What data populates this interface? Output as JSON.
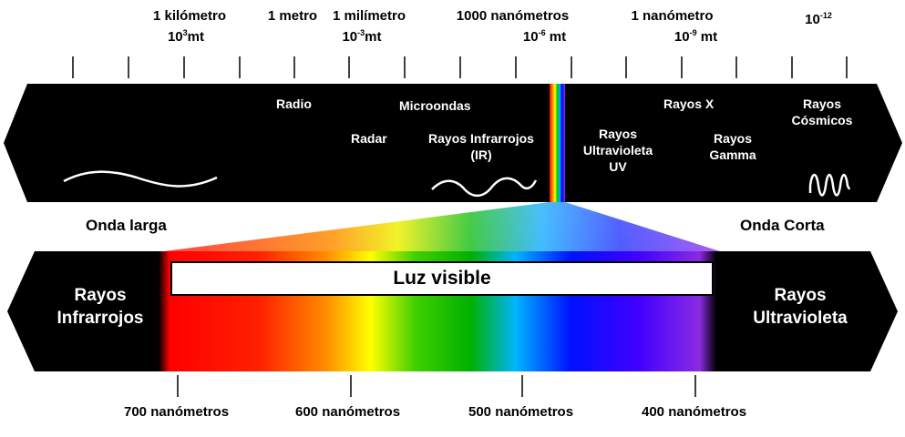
{
  "scale_labels": [
    {
      "id": "km",
      "line1": "1 kilómetro",
      "line2_base": "10",
      "line2_sup": "3",
      "line2_unit": "mt"
    },
    {
      "id": "m",
      "line1": "1 metro",
      "line2_base": "",
      "line2_sup": "",
      "line2_unit": ""
    },
    {
      "id": "mm",
      "line1": "1 milímetro",
      "line2_base": "10",
      "line2_sup": "-3",
      "line2_unit": "mt"
    },
    {
      "id": "um",
      "line1": "1000 nanómetros",
      "line2_base": "10",
      "line2_sup": "-6",
      "line2_unit": " mt"
    },
    {
      "id": "nm",
      "line1": "1 nanómetro",
      "line2_base": "10",
      "line2_sup": "-9",
      "line2_unit": " mt"
    },
    {
      "id": "pm",
      "line1": "",
      "line2_base": "10",
      "line2_sup": "-12",
      "line2_unit": ""
    }
  ],
  "bands": {
    "radio": "Radio",
    "microondas": "Microondas",
    "radar": "Radar",
    "ir_line1": "Rayos Infrarrojos",
    "ir_line2": "(IR)",
    "uv_line1": "Rayos",
    "uv_line2": "Ultravioleta",
    "uv_line3": "UV",
    "xray": "Rayos X",
    "gamma_line1": "Rayos",
    "gamma_line2": "Gamma",
    "cosmic_line1": "Rayos",
    "cosmic_line2": "Cósmicos"
  },
  "wave_labels": {
    "long": "Onda larga",
    "short": "Onda Corta"
  },
  "lower_band": {
    "left_line1": "Rayos",
    "left_line2": "Infrarrojos",
    "right_line1": "Rayos",
    "right_line2": "Ultravioleta",
    "visible_title": "Luz visible"
  },
  "nm_labels": [
    "700 nanómetros",
    "600 nanómetros",
    "500 nanómetros",
    "400 nanómetros"
  ],
  "colors": {
    "band_bg": "#000000",
    "red": "#ff0000",
    "orange": "#ff8c00",
    "yellow": "#ffff00",
    "green": "#00c800",
    "cyan": "#00b4ff",
    "blue": "#0000ff",
    "violet": "#8a2be2"
  }
}
